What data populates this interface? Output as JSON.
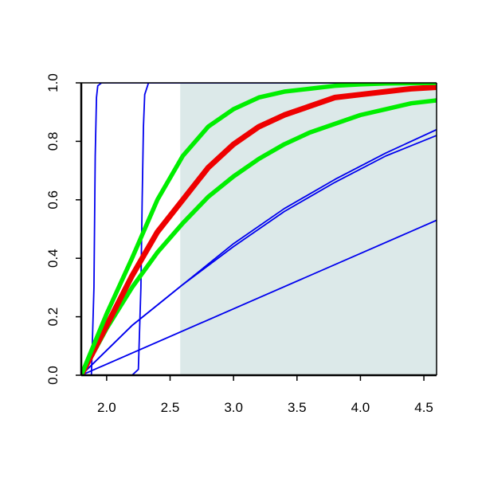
{
  "chart_data": {
    "type": "line",
    "title": "",
    "xlabel": "",
    "ylabel": "",
    "xlim": [
      1.8,
      4.6
    ],
    "ylim": [
      0,
      1
    ],
    "x_ticks": [
      {
        "value": 2.0,
        "label": "2.0"
      },
      {
        "value": 2.5,
        "label": "2.5"
      },
      {
        "value": 3.0,
        "label": "3.0"
      },
      {
        "value": 3.5,
        "label": "3.5"
      },
      {
        "value": 4.0,
        "label": "4.0"
      },
      {
        "value": 4.5,
        "label": "4.5"
      }
    ],
    "y_ticks": [
      {
        "value": 0.0,
        "label": "0.0"
      },
      {
        "value": 0.2,
        "label": "0.2"
      },
      {
        "value": 0.4,
        "label": "0.4"
      },
      {
        "value": 0.6,
        "label": "0.6"
      },
      {
        "value": 0.8,
        "label": "0.8"
      },
      {
        "value": 1.0,
        "label": "1.0"
      }
    ],
    "grid": false,
    "legend": "none",
    "shaded_region": {
      "x_from": 2.58,
      "x_to": 4.6,
      "color": "#dce9e9"
    },
    "series": [
      {
        "color": "#0000ee",
        "weight": "thin",
        "x": [
          1.8,
          1.88,
          1.9,
          1.91,
          1.92,
          1.93,
          1.96,
          4.6
        ],
        "y": [
          0,
          0,
          0.3,
          0.75,
          0.95,
          0.99,
          1.0,
          1.0
        ]
      },
      {
        "color": "#0000ee",
        "weight": "thin",
        "x": [
          1.8,
          2.2,
          2.25,
          2.27,
          2.28,
          2.29,
          2.3,
          2.33,
          4.6
        ],
        "y": [
          0,
          0,
          0.02,
          0.3,
          0.6,
          0.85,
          0.96,
          1.0,
          1.0
        ]
      },
      {
        "color": "#0000ee",
        "weight": "thin",
        "x": [
          1.8,
          4.6
        ],
        "y": [
          0,
          0.53
        ]
      },
      {
        "color": "#0000ee",
        "weight": "thin",
        "x": [
          1.8,
          2.2,
          2.6,
          3.0,
          3.4,
          3.8,
          4.2,
          4.6
        ],
        "y": [
          0,
          0.17,
          0.31,
          0.44,
          0.56,
          0.66,
          0.75,
          0.82
        ]
      },
      {
        "color": "#0000ee",
        "weight": "thin",
        "x": [
          1.8,
          2.2,
          2.6,
          3.0,
          3.4,
          3.8,
          4.2,
          4.6
        ],
        "y": [
          0,
          0.17,
          0.31,
          0.45,
          0.57,
          0.67,
          0.76,
          0.84
        ]
      },
      {
        "color": "#00ee00",
        "weight": "thick",
        "x": [
          1.8,
          2.0,
          2.2,
          2.4,
          2.6,
          2.8,
          3.0,
          3.2,
          3.4,
          3.6,
          3.8,
          4.0,
          4.2,
          4.4,
          4.6
        ],
        "y": [
          0,
          0.16,
          0.3,
          0.42,
          0.52,
          0.61,
          0.68,
          0.74,
          0.79,
          0.83,
          0.86,
          0.89,
          0.91,
          0.93,
          0.94
        ]
      },
      {
        "color": "#ee0000",
        "weight": "extra-thick",
        "x": [
          1.8,
          2.0,
          2.2,
          2.4,
          2.6,
          2.8,
          3.0,
          3.2,
          3.4,
          3.6,
          3.8,
          4.0,
          4.2,
          4.4,
          4.6
        ],
        "y": [
          0,
          0.17,
          0.34,
          0.49,
          0.6,
          0.71,
          0.79,
          0.85,
          0.89,
          0.92,
          0.95,
          0.96,
          0.97,
          0.98,
          0.985
        ]
      },
      {
        "color": "#00ee00",
        "weight": "thick",
        "x": [
          1.8,
          2.0,
          2.2,
          2.4,
          2.6,
          2.8,
          3.0,
          3.2,
          3.4,
          3.6,
          3.8,
          4.0,
          4.2,
          4.4,
          4.6
        ],
        "y": [
          0,
          0.21,
          0.4,
          0.6,
          0.75,
          0.85,
          0.91,
          0.95,
          0.97,
          0.98,
          0.99,
          0.995,
          0.998,
          0.999,
          1.0
        ]
      }
    ]
  }
}
